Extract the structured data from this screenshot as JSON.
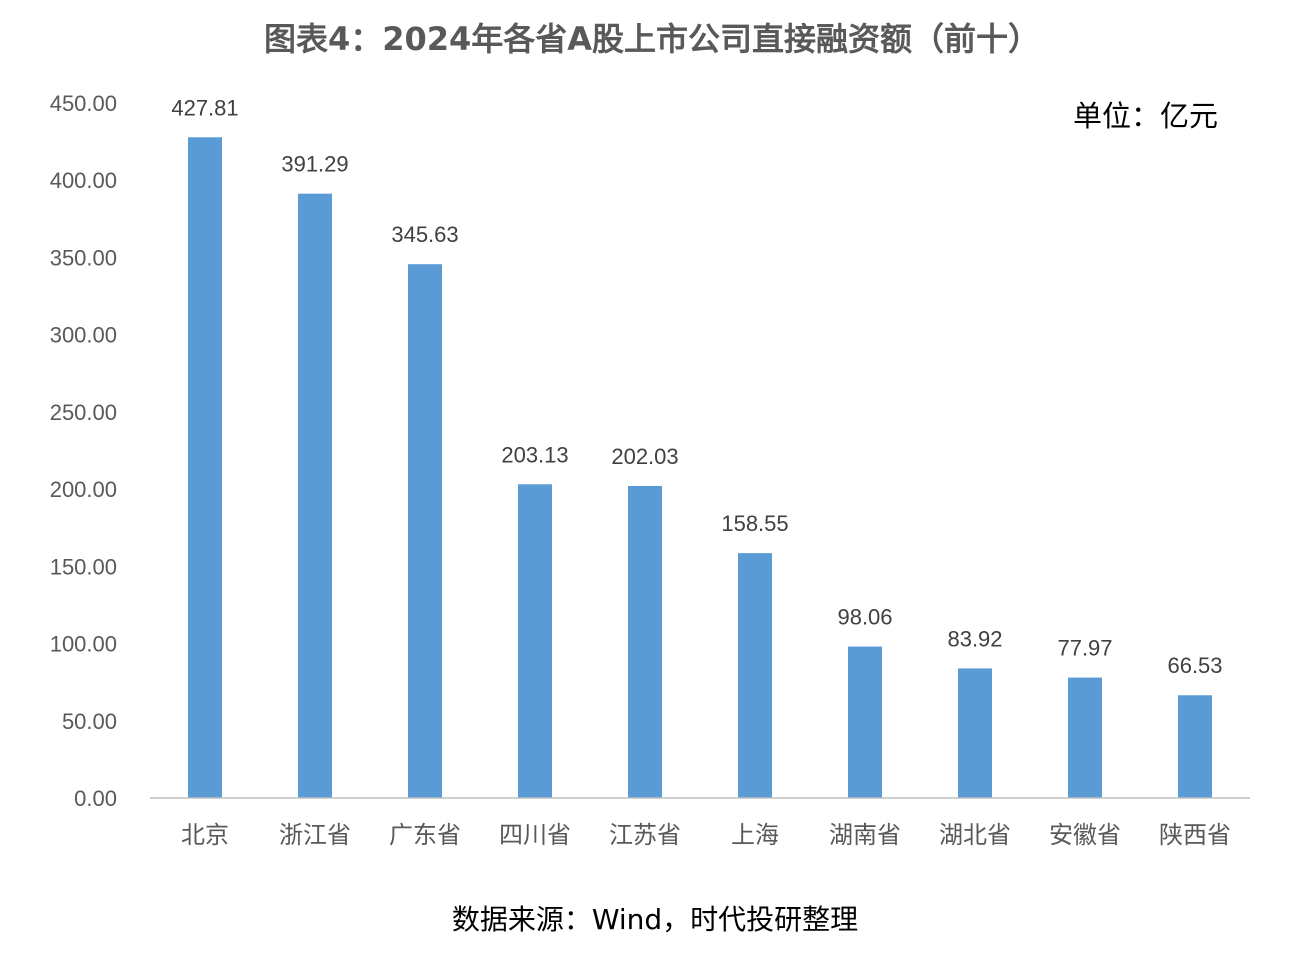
{
  "chart_data": {
    "type": "bar",
    "title": "图表4：2024年各省A股上市公司直接融资额（前十）",
    "unit_label": "单位：亿元",
    "source": "数据来源：Wind，时代投研整理",
    "categories": [
      "北京",
      "浙江省",
      "广东省",
      "四川省",
      "江苏省",
      "上海",
      "湖南省",
      "湖北省",
      "安徽省",
      "陕西省"
    ],
    "values": [
      427.81,
      391.29,
      345.63,
      203.13,
      202.03,
      158.55,
      98.06,
      83.92,
      77.97,
      66.53
    ],
    "data_labels": [
      "427.81",
      "391.29",
      "345.63",
      "203.13",
      "202.03",
      "158.55",
      "98.06",
      "83.92",
      "77.97",
      "66.53"
    ],
    "y_ticks": [
      "0.00",
      "50.00",
      "100.00",
      "150.00",
      "200.00",
      "250.00",
      "300.00",
      "350.00",
      "400.00",
      "450.00"
    ],
    "ylim": [
      0,
      450
    ],
    "xlabel": "",
    "ylabel": "",
    "grid": false,
    "legend": "none",
    "bar_color": "#5B9BD5",
    "axis_color": "#BFBFBF"
  }
}
